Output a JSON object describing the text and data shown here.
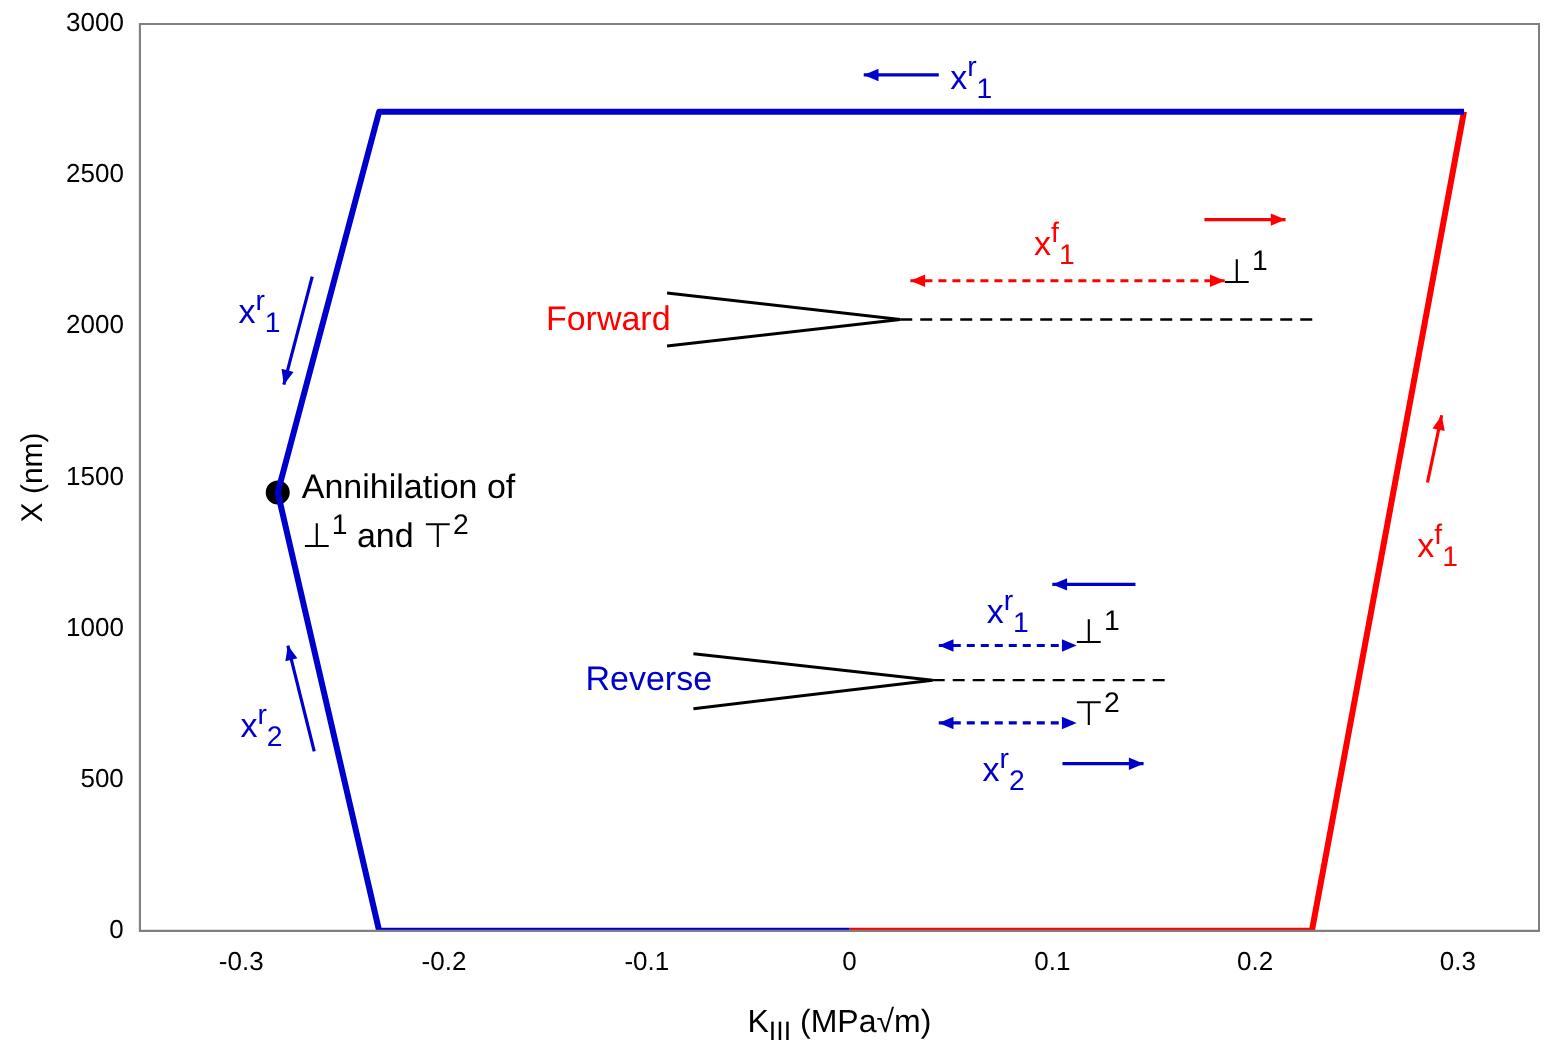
{
  "chart_data": {
    "type": "line",
    "xlabel": "K$_{III}$ (MPa√m)",
    "ylabel": "X (nm)",
    "xlim": [
      -0.35,
      0.34
    ],
    "xticks": [
      -0.3,
      -0.2,
      -0.1,
      0,
      0.1,
      0.2,
      0.3
    ],
    "ylim": [
      0,
      3000
    ],
    "yticks": [
      0,
      500,
      1000,
      1500,
      2000,
      2500,
      3000
    ],
    "legend": false,
    "series": [
      {
        "color": "#0000cc",
        "x": [
          0,
          -0.232,
          -0.282,
          -0.232,
          0.303
        ],
        "values": [
          0,
          0,
          1450,
          2710,
          2710
        ]
      },
      {
        "color": "#ff0000",
        "x": [
          0,
          0.228,
          0.303
        ],
        "values": [
          0,
          0,
          2710
        ]
      },
      {
        "type": "scatter",
        "color": "#000000",
        "x": [
          -0.282
        ],
        "values": [
          1450
        ]
      }
    ],
    "annotations": [
      "x$^{r}$$_{1}$",
      "x$^{r}$$_{1}$",
      "x$^{r}$$_{2}$",
      {
        "text": "Annihilation of ⊥$^{1}$ and ⊤$^{2}$",
        "x": -0.282,
        "y": 1450
      },
      "Forward",
      "x$^{f}$$_{1}$",
      "⊥$^{1}$",
      "x$^{f}$$_{1}$",
      "Reverse",
      "x$^{r}$$_{1}$",
      "⊥$^{1}$",
      "⊤$^{2}$",
      "x$^{r}$$_{2}$"
    ]
  }
}
